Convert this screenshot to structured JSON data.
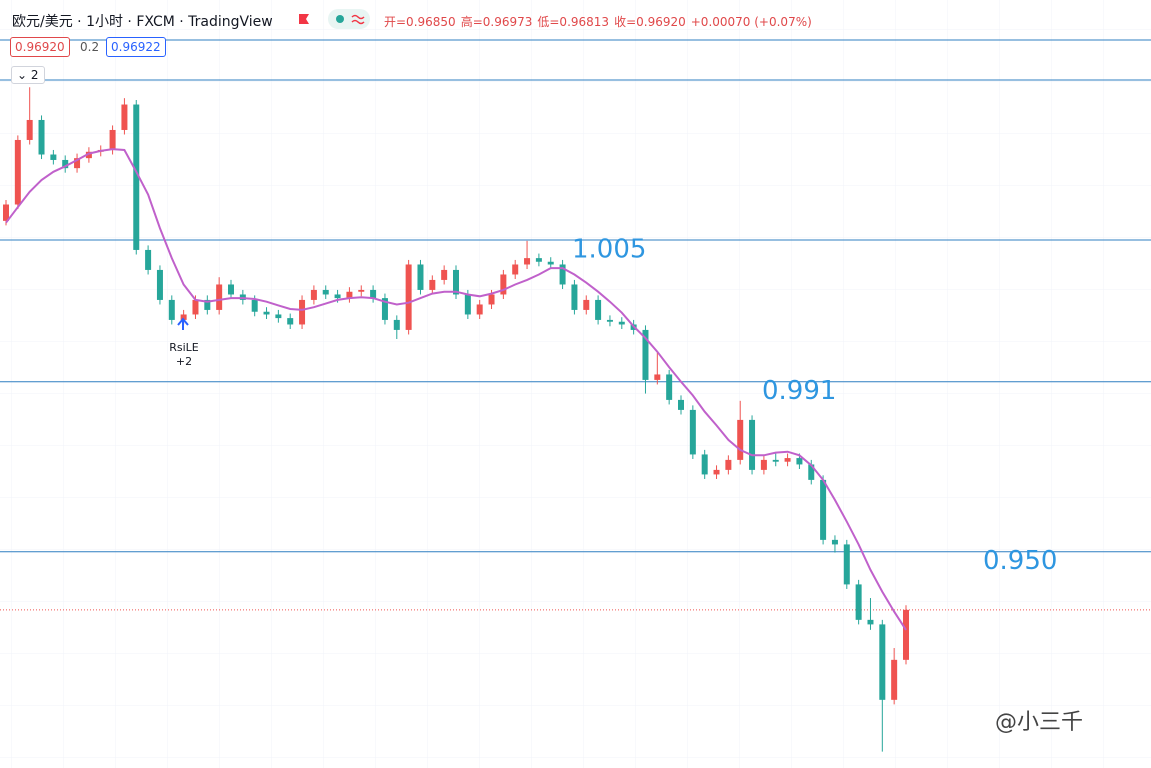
{
  "chart_data": {
    "type": "candlestick",
    "title": "欧元/美元 · 1小时 · FXCM · TradingView",
    "legend_ohlc": [
      "开=0.96850",
      "高=0.96973",
      "低=0.96813",
      "收=0.96920",
      "+0.00070 (+0.07%)"
    ],
    "price_boxes": [
      "0.96920",
      "0.2",
      "0.96922"
    ],
    "indicator_count": "2",
    "signal": {
      "name": "RsiLE",
      "qty": "+2"
    },
    "watermark": "@小三千",
    "ylim": [
      0.9518,
      1.0363
    ],
    "up_color": "#ef5350",
    "down_color": "#26a69a",
    "ma_color": "#c061cb",
    "hline_color": "#2f7fc1",
    "open": [
      1.012,
      1.0138,
      1.0209,
      1.0231,
      1.0193,
      1.0187,
      1.0178,
      1.0189,
      1.0196,
      1.0198,
      1.022,
      1.0248,
      1.0088,
      1.0066,
      1.0033,
      1.0011,
      1.0017,
      1.0033,
      1.0022,
      1.005,
      1.0039,
      1.0033,
      1.002,
      1.0017,
      1.0013,
      1.0006,
      1.0033,
      1.0044,
      1.0039,
      1.0035,
      1.0042,
      1.0044,
      1.0035,
      1.0011,
      1.0,
      1.0072,
      1.0044,
      1.0055,
      1.0066,
      1.0039,
      1.0017,
      1.0028,
      1.0039,
      1.0061,
      1.0072,
      1.0079,
      1.0075,
      1.0072,
      1.005,
      1.0022,
      1.0033,
      1.0011,
      1.0009,
      1.0006,
      1.0,
      0.9945,
      0.9951,
      0.9923,
      0.9912,
      0.9863,
      0.9841,
      0.9846,
      0.9857,
      0.9901,
      0.9846,
      0.9857,
      0.9855,
      0.9859,
      0.9852,
      0.9835,
      0.9769,
      0.9764,
      0.972,
      0.9681,
      0.9676,
      0.9593,
      0.9637
    ],
    "high": [
      1.0143,
      1.0214,
      1.0267,
      1.0236,
      1.0198,
      1.0192,
      1.0194,
      1.0201,
      1.0203,
      1.0225,
      1.0255,
      1.0253,
      1.0093,
      1.0071,
      1.0038,
      1.0022,
      1.0038,
      1.0038,
      1.0058,
      1.0055,
      1.0044,
      1.0038,
      1.0025,
      1.0022,
      1.0018,
      1.0038,
      1.0049,
      1.0049,
      1.0044,
      1.0047,
      1.0049,
      1.0049,
      1.004,
      1.0016,
      1.0077,
      1.0077,
      1.006,
      1.0071,
      1.0071,
      1.0044,
      1.0033,
      1.0044,
      1.0066,
      1.0077,
      1.0098,
      1.0084,
      1.008,
      1.0077,
      1.0055,
      1.0038,
      1.0038,
      1.0016,
      1.0014,
      1.0011,
      1.0005,
      0.9975,
      0.9956,
      0.9928,
      0.9917,
      0.9868,
      0.9851,
      0.9862,
      0.9922,
      0.9906,
      0.9862,
      0.9864,
      0.9864,
      0.9864,
      0.9857,
      0.984,
      0.9774,
      0.9769,
      0.9725,
      0.9705,
      0.9681,
      0.965,
      0.9697
    ],
    "low": [
      1.0115,
      1.0133,
      1.0204,
      1.0188,
      1.0182,
      1.0173,
      1.0173,
      1.0184,
      1.0191,
      1.0193,
      1.0215,
      1.0083,
      1.0061,
      1.0028,
      1.0006,
      1.0006,
      1.0012,
      1.0017,
      1.0017,
      1.0034,
      1.0028,
      1.0015,
      1.0012,
      1.0008,
      1.0001,
      1.0001,
      1.0028,
      1.0034,
      1.003,
      1.003,
      1.0037,
      1.003,
      1.0006,
      0.999,
      0.9995,
      1.0039,
      1.0039,
      1.005,
      1.0034,
      1.0012,
      1.0012,
      1.0023,
      1.0034,
      1.0056,
      1.0067,
      1.007,
      1.0067,
      1.0045,
      1.0017,
      1.0017,
      1.0006,
      1.0004,
      1.0001,
      0.9995,
      0.993,
      0.994,
      0.9918,
      0.9907,
      0.9858,
      0.9836,
      0.9836,
      0.9841,
      0.9852,
      0.9841,
      0.9841,
      0.985,
      0.985,
      0.9847,
      0.983,
      0.9764,
      0.9755,
      0.9715,
      0.9676,
      0.967,
      0.9536,
      0.9588,
      0.9632
    ],
    "close": [
      1.0138,
      1.0209,
      1.0231,
      1.0193,
      1.0187,
      1.0178,
      1.0189,
      1.0196,
      1.0198,
      1.022,
      1.0248,
      1.0088,
      1.0066,
      1.0033,
      1.0011,
      1.0017,
      1.0033,
      1.0022,
      1.005,
      1.0039,
      1.0033,
      1.002,
      1.0017,
      1.0013,
      1.0006,
      1.0033,
      1.0044,
      1.0039,
      1.0035,
      1.0042,
      1.0044,
      1.0035,
      1.0011,
      1.0,
      1.0072,
      1.0044,
      1.0055,
      1.0066,
      1.0039,
      1.0017,
      1.0028,
      1.0039,
      1.0061,
      1.0072,
      1.0079,
      1.0075,
      1.0072,
      1.005,
      1.0022,
      1.0033,
      1.0011,
      1.0009,
      1.0006,
      1.0,
      0.9945,
      0.9951,
      0.9923,
      0.9912,
      0.9863,
      0.9841,
      0.9846,
      0.9857,
      0.9901,
      0.9846,
      0.9857,
      0.9855,
      0.9859,
      0.9852,
      0.9835,
      0.9769,
      0.9764,
      0.972,
      0.9681,
      0.9676,
      0.9593,
      0.9637,
      0.9692
    ],
    "ma": [
      1.0118,
      1.0135,
      1.0152,
      1.0165,
      1.0174,
      1.018,
      1.0187,
      1.0194,
      1.0197,
      1.0199,
      1.0198,
      1.0174,
      1.0149,
      1.0112,
      1.0079,
      1.005,
      1.0033,
      1.0031,
      1.0033,
      1.0035,
      1.0035,
      1.0034,
      1.0031,
      1.0027,
      1.0023,
      1.0022,
      1.0025,
      1.0029,
      1.0033,
      1.0035,
      1.0036,
      1.0035,
      1.0031,
      1.0028,
      1.003,
      1.0035,
      1.004,
      1.0042,
      1.0042,
      1.0039,
      1.0037,
      1.004,
      1.0044,
      1.005,
      1.0055,
      1.0061,
      1.0068,
      1.0068,
      1.0061,
      1.0052,
      1.0042,
      1.0031,
      1.0019,
      1.0004,
      0.9991,
      0.9976,
      0.9959,
      0.9943,
      0.9928,
      0.991,
      0.9895,
      0.9879,
      0.9868,
      0.9862,
      0.9862,
      0.9865,
      0.9866,
      0.9862,
      0.9851,
      0.9835,
      0.9813,
      0.9789,
      0.9764,
      0.9736,
      0.9712,
      0.969,
      0.967
    ],
    "hlines": [
      {
        "value": 1.0319
      },
      {
        "value": 1.0275
      },
      {
        "value": 1.0099,
        "label": "1.005"
      },
      {
        "value": 0.9943,
        "label": "0.991"
      },
      {
        "value": 0.9756,
        "label": "0.950"
      }
    ]
  }
}
